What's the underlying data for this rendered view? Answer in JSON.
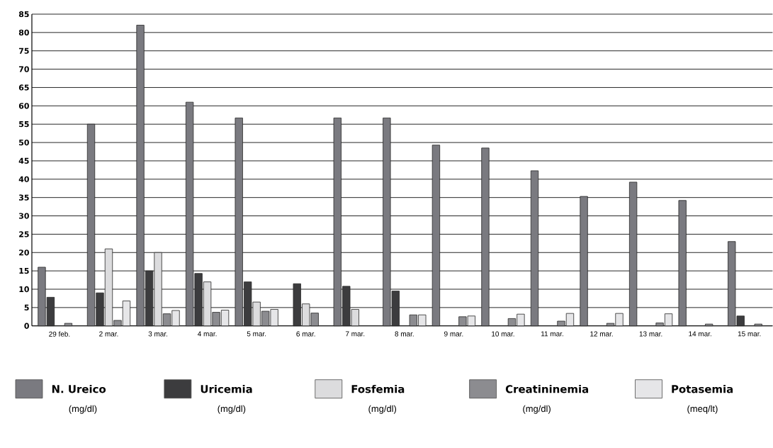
{
  "chart_data": {
    "type": "bar",
    "categories": [
      "29 feb.",
      "2 mar.",
      "3 mar.",
      "4 mar.",
      "5 mar.",
      "6 mar.",
      "7 mar.",
      "8 mar.",
      "9 mar.",
      "10 mar.",
      "11 mar.",
      "12 mar.",
      "13 mar.",
      "14 mar.",
      "15 mar."
    ],
    "series": [
      {
        "name": "N. Ureico",
        "color": "#7a7a80",
        "values": [
          16,
          55,
          82,
          61,
          56.7,
          null,
          56.7,
          56.7,
          49.3,
          48.5,
          42.3,
          35.3,
          39.2,
          34.2,
          23
        ]
      },
      {
        "name": "Uricemia",
        "color": "#3c3c3e",
        "values": [
          7.8,
          9,
          15,
          14.3,
          12,
          11.5,
          10.8,
          9.5,
          null,
          null,
          null,
          null,
          null,
          null,
          2.7
        ]
      },
      {
        "name": "Fosfemia",
        "color": "#dcdcde",
        "values": [
          null,
          21,
          20,
          12,
          6.5,
          6,
          4.5,
          null,
          null,
          null,
          null,
          null,
          null,
          null,
          null
        ]
      },
      {
        "name": "Creatininemia",
        "color": "#8c8c90",
        "values": [
          0.7,
          1.5,
          3.3,
          3.7,
          4,
          3.5,
          null,
          3,
          2.5,
          2,
          1.3,
          0.7,
          0.8,
          0.5,
          0.5
        ]
      },
      {
        "name": "Potasemia",
        "color": "#e6e6e8",
        "values": [
          null,
          6.8,
          4.2,
          4.3,
          4.5,
          null,
          null,
          3,
          2.7,
          3.2,
          3.4,
          3.4,
          3.3,
          null,
          null
        ]
      }
    ],
    "annotations": [
      "(mg/dl)",
      "(mg/dl)",
      "(mg/dl)",
      "(mg/dl)",
      "(meq/lt)"
    ],
    "ylim": [
      0,
      85
    ],
    "yticks": [
      0,
      5,
      10,
      15,
      20,
      25,
      30,
      35,
      40,
      45,
      50,
      55,
      60,
      65,
      70,
      75,
      80,
      85
    ],
    "grid": "y",
    "legend": "bottom"
  }
}
